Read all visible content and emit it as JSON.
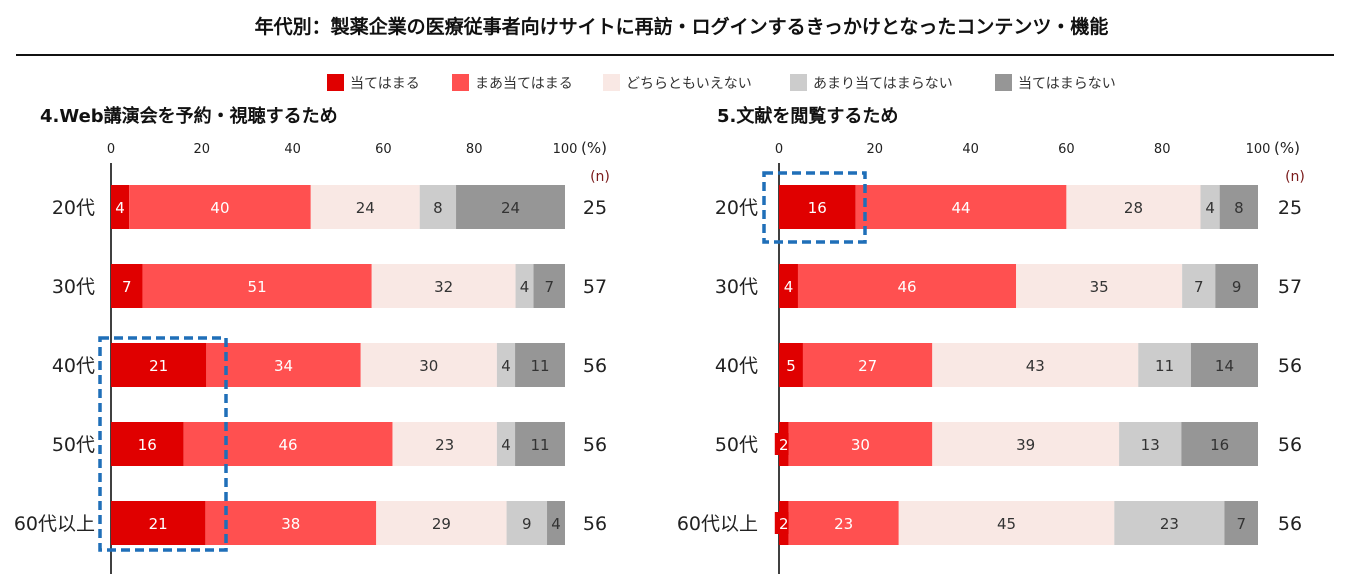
{
  "title": "年代別：製薬企業の医療従事者向けサイトに再訪・ログインするきっかけとなったコンテンツ・機能",
  "legend": [
    {
      "label": "当てはまる",
      "color": "#e00000"
    },
    {
      "label": "まあ当てはまる",
      "color": "#ff5050"
    },
    {
      "label": "どちらともいえない",
      "color": "#f9e8e4"
    },
    {
      "label": "あまり当てはまらない",
      "color": "#cccccc"
    },
    {
      "label": "当てはまらない",
      "color": "#969696"
    }
  ],
  "highlight_color": "#1f6fb8",
  "chart_data": [
    {
      "type": "bar",
      "orientation": "horizontal-stacked-100",
      "title": "4.Web講演会を予約・視聴するため",
      "unit_label": "(%)",
      "n_label": "(n)",
      "xlim": [
        0,
        100
      ],
      "xticks": [
        "0",
        "20",
        "40",
        "60",
        "80",
        "100"
      ],
      "categories": [
        "20代",
        "30代",
        "40代",
        "50代",
        "60代以上"
      ],
      "n": [
        "25",
        "57",
        "56",
        "56",
        "56"
      ],
      "series": [
        {
          "name": "当てはまる",
          "values": [
            4,
            7,
            21,
            16,
            21
          ]
        },
        {
          "name": "まあ当てはまる",
          "values": [
            40,
            51,
            34,
            46,
            38
          ]
        },
        {
          "name": "どちらともいえない",
          "values": [
            24,
            32,
            30,
            23,
            29
          ]
        },
        {
          "name": "あまり当てはまらない",
          "values": [
            8,
            4,
            4,
            4,
            9
          ]
        },
        {
          "name": "当てはまらない",
          "values": [
            24,
            7,
            11,
            11,
            4
          ]
        }
      ],
      "highlight": {
        "series": "当てはまる",
        "categories": [
          "40代",
          "50代",
          "60代以上"
        ]
      }
    },
    {
      "type": "bar",
      "orientation": "horizontal-stacked-100",
      "title": "5.文献を閲覧するため",
      "unit_label": "(%)",
      "n_label": "(n)",
      "xlim": [
        0,
        100
      ],
      "xticks": [
        "0",
        "20",
        "40",
        "60",
        "80",
        "100"
      ],
      "categories": [
        "20代",
        "30代",
        "40代",
        "50代",
        "60代以上"
      ],
      "n": [
        "25",
        "57",
        "56",
        "56",
        "56"
      ],
      "series": [
        {
          "name": "当てはまる",
          "values": [
            16,
            4,
            5,
            2,
            2
          ]
        },
        {
          "name": "まあ当てはまる",
          "values": [
            44,
            46,
            27,
            30,
            23
          ]
        },
        {
          "name": "どちらともいえない",
          "values": [
            28,
            35,
            43,
            39,
            45
          ]
        },
        {
          "name": "あまり当てはまらない",
          "values": [
            4,
            7,
            11,
            13,
            23
          ]
        },
        {
          "name": "当てはまらない",
          "values": [
            8,
            9,
            14,
            16,
            7
          ]
        }
      ],
      "highlight": {
        "series": "当てはまる",
        "categories": [
          "20代"
        ]
      }
    }
  ]
}
